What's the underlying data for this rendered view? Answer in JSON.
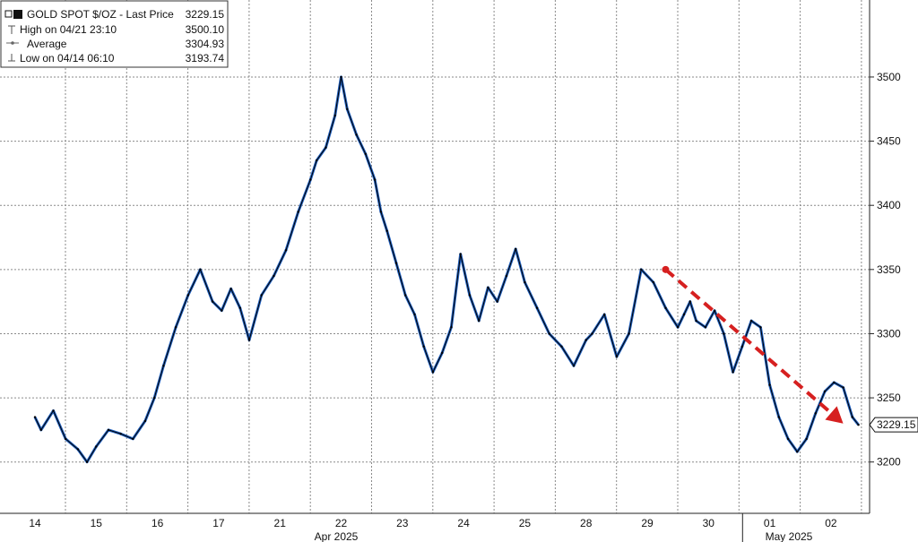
{
  "legend": {
    "items": [
      {
        "label": "GOLD SPOT $/OZ - Last Price",
        "value": "3229.15",
        "marker": "square"
      },
      {
        "label": "High on 04/21 23:10",
        "value": "3500.10",
        "marker": "high-tick"
      },
      {
        "label": "Average",
        "value": "3304.93",
        "marker": "average-line"
      },
      {
        "label": "Low on 04/14 06:10",
        "value": "3193.74",
        "marker": "low-tick"
      }
    ]
  },
  "last_price_badge": "3229.15",
  "colors": {
    "series_fill": "#1f5fbf",
    "series_line": "#000000",
    "arrow": "#d62020",
    "grid": "#8a8a8a",
    "badge_bg": "#ffffff"
  },
  "chart_data": {
    "type": "line",
    "title": "",
    "xlabel": "",
    "ylabel": "",
    "ylim": [
      3160,
      3560
    ],
    "y_ticks": [
      3200,
      3250,
      3300,
      3350,
      3400,
      3450,
      3500
    ],
    "y_axis_position": "right",
    "grid": true,
    "x_ticks": [
      "14",
      "15",
      "16",
      "17",
      "21",
      "22",
      "23",
      "24",
      "25",
      "28",
      "29",
      "30",
      "01",
      "02"
    ],
    "x_group_labels": [
      "Apr 2025",
      "May 2025"
    ],
    "series": [
      {
        "name": "GOLD SPOT $/OZ",
        "x": [
          0,
          0.1,
          0.3,
          0.5,
          0.7,
          0.85,
          1.0,
          1.2,
          1.4,
          1.6,
          1.8,
          1.95,
          2.1,
          2.3,
          2.5,
          2.7,
          2.9,
          3.05,
          3.2,
          3.35,
          3.5,
          3.7,
          3.9,
          4.1,
          4.3,
          4.5,
          4.6,
          4.75,
          4.9,
          5.0,
          5.1,
          5.25,
          5.4,
          5.55,
          5.65,
          5.75,
          5.9,
          6.05,
          6.2,
          6.35,
          6.5,
          6.65,
          6.8,
          6.95,
          7.1,
          7.25,
          7.4,
          7.55,
          7.7,
          7.85,
          8.0,
          8.2,
          8.4,
          8.6,
          8.8,
          9.0,
          9.1,
          9.3,
          9.5,
          9.7,
          9.9,
          10.1,
          10.3,
          10.5,
          10.6,
          10.7,
          10.8,
          10.95,
          11.1,
          11.25,
          11.4,
          11.55,
          11.7,
          11.85,
          12.0,
          12.15,
          12.3,
          12.45,
          12.6,
          12.75,
          12.9,
          13.05,
          13.2,
          13.35,
          13.45
        ],
        "values": [
          3235,
          3225,
          3240,
          3218,
          3210,
          3200,
          3212,
          3225,
          3222,
          3218,
          3232,
          3250,
          3275,
          3305,
          3330,
          3350,
          3325,
          3318,
          3335,
          3320,
          3295,
          3330,
          3345,
          3365,
          3395,
          3420,
          3435,
          3445,
          3470,
          3500,
          3475,
          3455,
          3440,
          3420,
          3395,
          3380,
          3355,
          3330,
          3315,
          3290,
          3270,
          3285,
          3305,
          3362,
          3330,
          3310,
          3336,
          3325,
          3345,
          3366,
          3340,
          3320,
          3300,
          3290,
          3275,
          3295,
          3300,
          3315,
          3282,
          3300,
          3350,
          3340,
          3320,
          3305,
          3315,
          3325,
          3310,
          3305,
          3318,
          3300,
          3270,
          3290,
          3310,
          3305,
          3260,
          3235,
          3218,
          3208,
          3218,
          3238,
          3255,
          3262,
          3258,
          3235,
          3229
        ]
      }
    ],
    "annotations": [
      {
        "type": "arrow",
        "style": "dashed",
        "from": {
          "x": 10.3,
          "y": 3350
        },
        "to": {
          "x": 13.2,
          "y": 3230
        }
      }
    ]
  }
}
